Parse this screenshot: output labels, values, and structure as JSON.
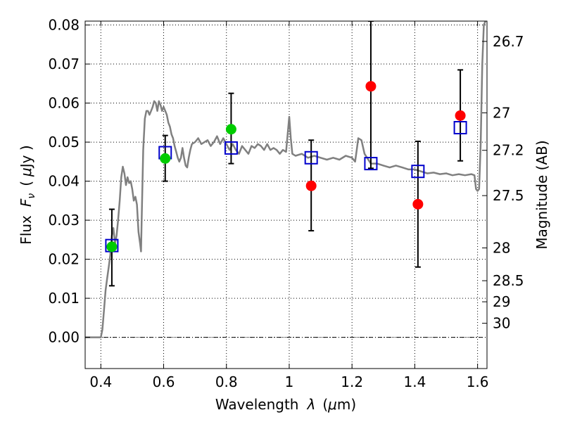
{
  "chart_data": {
    "type": "scatter",
    "xlabel_text": "Wavelength",
    "xlabel_symbol": "λ",
    "xlabel_unit_open": "(",
    "xlabel_unit_mu": "μ",
    "xlabel_unit_rest": "m)",
    "ylabel_text": "Flux",
    "ylabel_symbol_F": "F",
    "ylabel_symbol_sub": "ν",
    "ylabel_unit_open": "(",
    "ylabel_unit_mu": "μ",
    "ylabel_unit_rest": "Jy )",
    "y2label": "Magnitude (AB)",
    "xlim": [
      0.35,
      1.63
    ],
    "ylim": [
      -0.008,
      0.081
    ],
    "grid": true,
    "x_ticks": [
      0.4,
      0.6,
      0.8,
      1.0,
      1.2,
      1.4,
      1.6
    ],
    "x_tick_labels": [
      "0.4",
      "0.6",
      "0.8",
      "1",
      "1.2",
      "1.4",
      "1.6"
    ],
    "y_ticks": [
      0.0,
      0.01,
      0.02,
      0.03,
      0.04,
      0.05,
      0.06,
      0.07,
      0.08
    ],
    "y_tick_labels": [
      "0.00",
      "0.01",
      "0.02",
      "0.03",
      "0.04",
      "0.05",
      "0.06",
      "0.07",
      "0.08"
    ],
    "y2_ticks": [
      {
        "label": "26.7",
        "flux": 0.0758
      },
      {
        "label": "27",
        "flux": 0.0575
      },
      {
        "label": "27.2",
        "flux": 0.0479
      },
      {
        "label": "27.5",
        "flux": 0.0363
      },
      {
        "label": "28",
        "flux": 0.0229
      },
      {
        "label": "28.5",
        "flux": 0.0145
      },
      {
        "label": "29",
        "flux": 0.0091
      },
      {
        "label": "30",
        "flux": 0.0036
      }
    ],
    "colors": {
      "model": "#808080",
      "model_points": "#0000cc",
      "green_points": "#00cc00",
      "red_points": "#ff0000",
      "errors": "#000000"
    },
    "series": [
      {
        "kind": "line",
        "points": [
          [
            0.35,
            0.0
          ],
          [
            0.37,
            0.0
          ],
          [
            0.39,
            0.0
          ],
          [
            0.4,
            0.0
          ],
          [
            0.405,
            0.002
          ],
          [
            0.41,
            0.007
          ],
          [
            0.415,
            0.012
          ],
          [
            0.42,
            0.015
          ],
          [
            0.425,
            0.018
          ],
          [
            0.43,
            0.021
          ],
          [
            0.435,
            0.026
          ],
          [
            0.44,
            0.028
          ],
          [
            0.445,
            0.024
          ],
          [
            0.45,
            0.026
          ],
          [
            0.455,
            0.03
          ],
          [
            0.46,
            0.035
          ],
          [
            0.465,
            0.041
          ],
          [
            0.47,
            0.0437
          ],
          [
            0.475,
            0.042
          ],
          [
            0.48,
            0.039
          ],
          [
            0.485,
            0.041
          ],
          [
            0.49,
            0.0395
          ],
          [
            0.495,
            0.04
          ],
          [
            0.5,
            0.038
          ],
          [
            0.505,
            0.035
          ],
          [
            0.51,
            0.036
          ],
          [
            0.515,
            0.034
          ],
          [
            0.52,
            0.027
          ],
          [
            0.525,
            0.024
          ],
          [
            0.528,
            0.022
          ],
          [
            0.53,
            0.03
          ],
          [
            0.535,
            0.048
          ],
          [
            0.54,
            0.056
          ],
          [
            0.545,
            0.058
          ],
          [
            0.55,
            0.058
          ],
          [
            0.555,
            0.057
          ],
          [
            0.56,
            0.058
          ],
          [
            0.565,
            0.059
          ],
          [
            0.57,
            0.0605
          ],
          [
            0.575,
            0.06
          ],
          [
            0.58,
            0.058
          ],
          [
            0.585,
            0.0605
          ],
          [
            0.59,
            0.0595
          ],
          [
            0.595,
            0.058
          ],
          [
            0.6,
            0.059
          ],
          [
            0.605,
            0.058
          ],
          [
            0.61,
            0.057
          ],
          [
            0.615,
            0.055
          ],
          [
            0.62,
            0.054
          ],
          [
            0.625,
            0.052
          ],
          [
            0.63,
            0.051
          ],
          [
            0.635,
            0.049
          ],
          [
            0.64,
            0.0475
          ],
          [
            0.645,
            0.046
          ],
          [
            0.65,
            0.045
          ],
          [
            0.655,
            0.046
          ],
          [
            0.66,
            0.0485
          ],
          [
            0.665,
            0.046
          ],
          [
            0.67,
            0.044
          ],
          [
            0.675,
            0.0435
          ],
          [
            0.68,
            0.046
          ],
          [
            0.685,
            0.048
          ],
          [
            0.69,
            0.0495
          ],
          [
            0.7,
            0.05
          ],
          [
            0.71,
            0.051
          ],
          [
            0.72,
            0.0495
          ],
          [
            0.73,
            0.05
          ],
          [
            0.74,
            0.0505
          ],
          [
            0.75,
            0.049
          ],
          [
            0.76,
            0.05
          ],
          [
            0.77,
            0.0515
          ],
          [
            0.78,
            0.0495
          ],
          [
            0.79,
            0.051
          ],
          [
            0.8,
            0.0495
          ],
          [
            0.81,
            0.048
          ],
          [
            0.82,
            0.0495
          ],
          [
            0.83,
            0.048
          ],
          [
            0.84,
            0.047
          ],
          [
            0.85,
            0.049
          ],
          [
            0.86,
            0.048
          ],
          [
            0.87,
            0.047
          ],
          [
            0.88,
            0.049
          ],
          [
            0.89,
            0.0485
          ],
          [
            0.9,
            0.0495
          ],
          [
            0.91,
            0.049
          ],
          [
            0.92,
            0.048
          ],
          [
            0.93,
            0.0495
          ],
          [
            0.94,
            0.048
          ],
          [
            0.95,
            0.0485
          ],
          [
            0.96,
            0.048
          ],
          [
            0.97,
            0.047
          ],
          [
            0.98,
            0.048
          ],
          [
            0.99,
            0.0475
          ],
          [
            1.0,
            0.0565
          ],
          [
            1.005,
            0.051
          ],
          [
            1.01,
            0.047
          ],
          [
            1.02,
            0.0465
          ],
          [
            1.04,
            0.047
          ],
          [
            1.06,
            0.046
          ],
          [
            1.08,
            0.0465
          ],
          [
            1.1,
            0.046
          ],
          [
            1.12,
            0.0455
          ],
          [
            1.14,
            0.046
          ],
          [
            1.16,
            0.0455
          ],
          [
            1.18,
            0.0465
          ],
          [
            1.2,
            0.046
          ],
          [
            1.21,
            0.045
          ],
          [
            1.215,
            0.048
          ],
          [
            1.22,
            0.051
          ],
          [
            1.23,
            0.0505
          ],
          [
            1.24,
            0.047
          ],
          [
            1.26,
            0.0445
          ],
          [
            1.28,
            0.0445
          ],
          [
            1.3,
            0.044
          ],
          [
            1.32,
            0.0435
          ],
          [
            1.34,
            0.044
          ],
          [
            1.36,
            0.0435
          ],
          [
            1.38,
            0.043
          ],
          [
            1.4,
            0.043
          ],
          [
            1.42,
            0.0425
          ],
          [
            1.44,
            0.042
          ],
          [
            1.46,
            0.0422
          ],
          [
            1.48,
            0.0418
          ],
          [
            1.5,
            0.042
          ],
          [
            1.52,
            0.0415
          ],
          [
            1.54,
            0.0418
          ],
          [
            1.56,
            0.0415
          ],
          [
            1.58,
            0.0418
          ],
          [
            1.59,
            0.0415
          ],
          [
            1.595,
            0.038
          ],
          [
            1.6,
            0.0375
          ],
          [
            1.605,
            0.038
          ],
          [
            1.61,
            0.05
          ],
          [
            1.615,
            0.07
          ],
          [
            1.62,
            0.08
          ],
          [
            1.625,
            0.081
          ]
        ]
      },
      {
        "kind": "open-squares",
        "points": [
          [
            0.435,
            0.0235
          ],
          [
            0.605,
            0.0473
          ],
          [
            0.815,
            0.0485
          ],
          [
            1.07,
            0.046
          ],
          [
            1.26,
            0.0445
          ],
          [
            1.41,
            0.0425
          ],
          [
            1.545,
            0.0537
          ]
        ]
      },
      {
        "kind": "filled-circles",
        "color": "green",
        "points": [
          {
            "x": 0.435,
            "y": 0.0232,
            "err": [
              0.0132,
              0.0328
            ]
          },
          {
            "x": 0.605,
            "y": 0.0458,
            "err": [
              0.04,
              0.0517
            ]
          },
          {
            "x": 0.815,
            "y": 0.0533,
            "err": [
              0.0445,
              0.0625
            ]
          }
        ]
      },
      {
        "kind": "filled-circles",
        "color": "red",
        "points": [
          {
            "x": 1.07,
            "y": 0.0388,
            "err": [
              0.0273,
              0.0505
            ]
          },
          {
            "x": 1.26,
            "y": 0.0643,
            "err": [
              0.0433,
              0.081
            ]
          },
          {
            "x": 1.41,
            "y": 0.0341,
            "err": [
              0.018,
              0.0502
            ]
          },
          {
            "x": 1.545,
            "y": 0.0568,
            "err": [
              0.0452,
              0.0685
            ]
          }
        ]
      }
    ]
  }
}
